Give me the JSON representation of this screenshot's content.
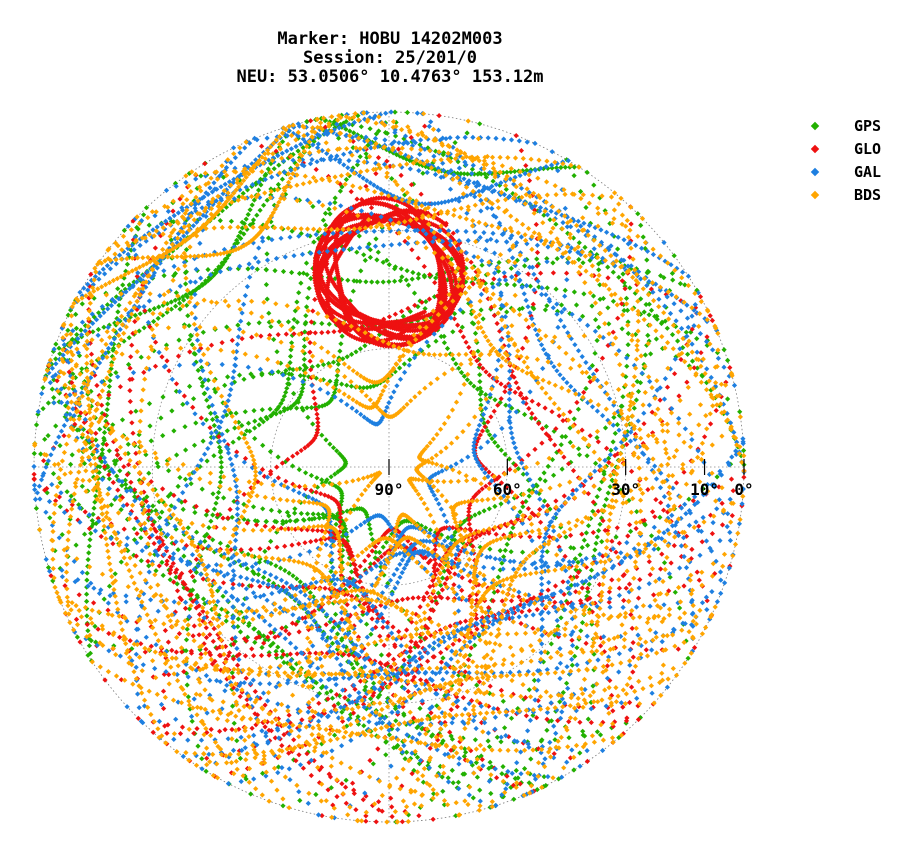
{
  "title": {
    "line1": "Marker: HOBU 14202M003",
    "line2": "Session: 25/201/0",
    "line3": "NEU: 53.0506° 10.4763° 153.12m"
  },
  "chart_data": {
    "type": "scatter",
    "subtype": "polar-skyplot",
    "series": [
      {
        "name": "GPS",
        "color": "#22b000"
      },
      {
        "name": "GLO",
        "color": "#ee1111"
      },
      {
        "name": "GAL",
        "color": "#1e7fe0"
      },
      {
        "name": "BDS",
        "color": "#ffa500"
      }
    ],
    "elevation_ticks": [
      {
        "value": 90,
        "label": "90°"
      },
      {
        "value": 60,
        "label": "60°"
      },
      {
        "value": 30,
        "label": "30°"
      },
      {
        "value": 10,
        "label": "10°"
      },
      {
        "value": 0,
        "label": "0°"
      }
    ],
    "elevation_range": [
      0,
      90
    ],
    "grid": true,
    "legend_position": "top-right"
  }
}
